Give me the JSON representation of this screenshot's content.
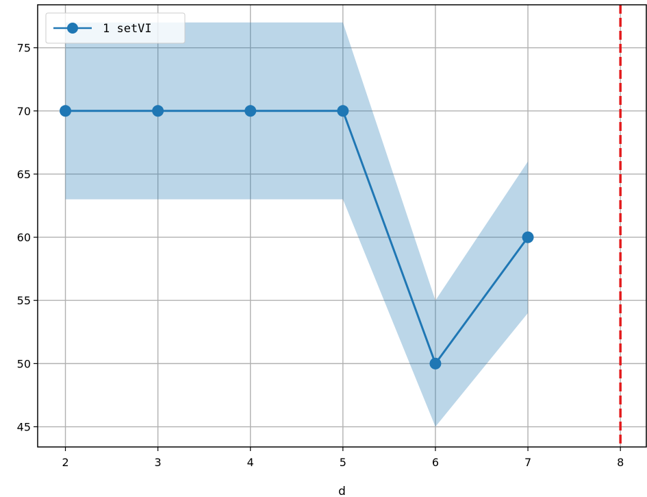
{
  "chart_data": {
    "type": "line",
    "xlabel": "d",
    "ylabel": "",
    "title": "",
    "xlim": [
      1.7,
      8.28
    ],
    "ylim": [
      43.4,
      78.4
    ],
    "x_ticks": [
      2,
      3,
      4,
      5,
      6,
      7,
      8
    ],
    "y_ticks": [
      45,
      50,
      55,
      60,
      65,
      70,
      75
    ],
    "grid": true,
    "legend_position": "top-left",
    "series": [
      {
        "name": "1 setVI",
        "color": "#1f77b4",
        "band_color": "#1f77b4",
        "x": [
          2,
          3,
          4,
          5,
          6,
          7
        ],
        "values": [
          70,
          70,
          70,
          70,
          50,
          60
        ],
        "lower": [
          63,
          63,
          63,
          63,
          45,
          54
        ],
        "upper": [
          77,
          77,
          77,
          77,
          55,
          66
        ]
      }
    ],
    "reference_line": {
      "x": 8,
      "color": "#e31a1c",
      "style": "dashed"
    }
  }
}
